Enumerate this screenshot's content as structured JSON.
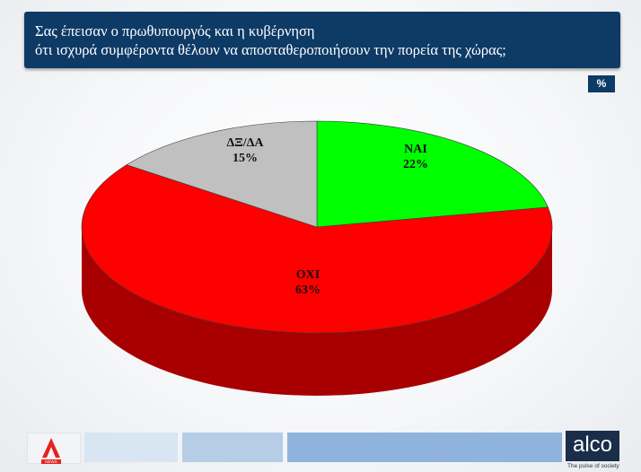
{
  "header": {
    "title_line1": "Σας έπεισαν ο πρωθυπουργός και η κυβέρνηση",
    "title_line2": "ότι  ισχυρά συμφέροντα θέλουν να αποσταθεροποιήσουν την πορεία της χώρας;",
    "percent_badge": "%"
  },
  "chart_data": {
    "type": "pie",
    "title": "Σας έπεισαν ο πρωθυπουργός και η κυβέρνηση ότι  ισχυρά συμφέροντα θέλουν να αποσταθεροποιήσουν την πορεία της χώρας;",
    "unit": "%",
    "three_d": true,
    "start_angle_deg": 0,
    "direction": "clockwise",
    "slices": [
      {
        "label": "ΝΑΙ",
        "value": 22,
        "value_label": "22%",
        "color": "#00ff00",
        "side_color": "#00a000"
      },
      {
        "label": "ΟΧΙ",
        "value": 63,
        "value_label": "63%",
        "color": "#ff0000",
        "side_color": "#a80000"
      },
      {
        "label": "ΔΞ/ΔΑ",
        "value": 15,
        "value_label": "15%",
        "color": "#c0c0c0",
        "side_color": "#7a7a7a"
      }
    ]
  },
  "footer": {
    "brand": "alco",
    "tagline": "The pulse of society",
    "channel_logo": "alpha-logo"
  }
}
